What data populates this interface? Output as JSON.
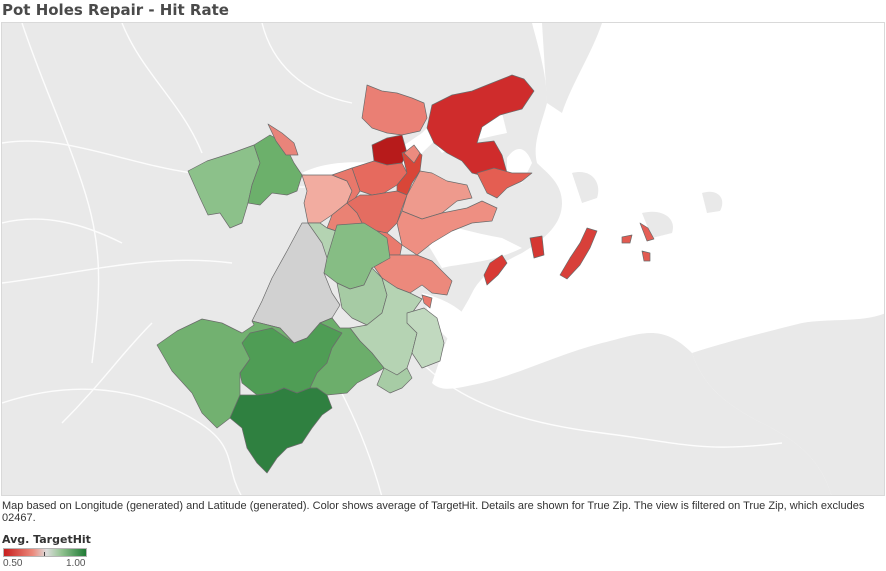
{
  "title": "Pot Holes Repair - Hit Rate",
  "caption": "Map based on Longitude (generated) and Latitude (generated).  Color shows average of TargetHit.  Details are shown for True Zip. The view is filtered on True Zip, which excludes 02467.",
  "legend": {
    "title": "Avg. TargetHit",
    "min_label": "0.50",
    "max_label": "1.00",
    "min_color": "#c71e1e",
    "mid_color": "#dcdcdc",
    "max_color": "#1f7a35"
  },
  "map": {
    "land_color": "#e9e9e9",
    "water_color": "#ffffff",
    "border_color": "#6b6b6b"
  }
}
